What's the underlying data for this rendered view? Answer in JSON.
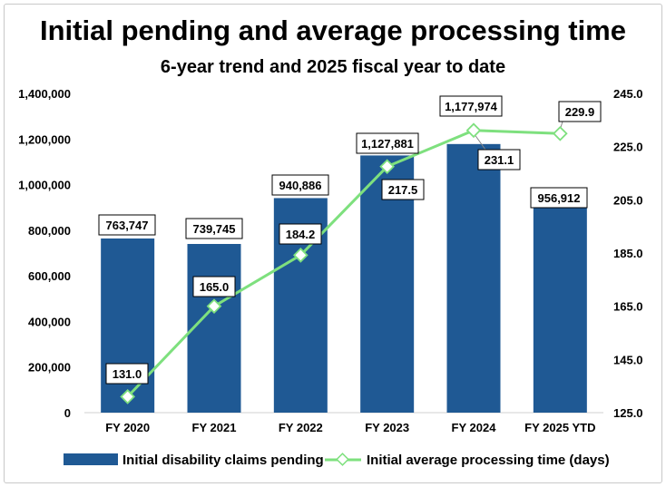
{
  "chart_data": {
    "type": "bar+line",
    "title": "Initial pending and average processing time",
    "subtitle": "6-year trend and 2025 fiscal year to date",
    "categories": [
      "FY 2020",
      "FY 2021",
      "FY 2022",
      "FY 2023",
      "FY 2024",
      "FY 2025 YTD"
    ],
    "series": [
      {
        "name": "Initial disability claims pending",
        "type": "bar",
        "axis": "left",
        "color": "#1f5994",
        "values": [
          763747,
          739745,
          940886,
          1127881,
          1177974,
          956912
        ],
        "labels": [
          "763,747",
          "739,745",
          "940,886",
          "1,127,881",
          "1,177,974",
          "956,912"
        ]
      },
      {
        "name": "Initial average processing time (days)",
        "type": "line",
        "axis": "right",
        "color": "#7ee07e",
        "values": [
          131.0,
          165.0,
          184.2,
          217.5,
          231.1,
          229.9
        ],
        "labels": [
          "131.0",
          "165.0",
          "184.2",
          "217.5",
          "231.1",
          "229.9"
        ]
      }
    ],
    "y_left": {
      "min": 0,
      "max": 1400000,
      "ticks": [
        "0",
        "200,000",
        "400,000",
        "600,000",
        "800,000",
        "1,000,000",
        "1,200,000",
        "1,400,000"
      ]
    },
    "y_right": {
      "min": 125.0,
      "max": 245.0,
      "ticks": [
        "125.0",
        "145.0",
        "165.0",
        "185.0",
        "205.0",
        "225.0",
        "245.0"
      ]
    },
    "legend_position": "bottom",
    "grid": false
  }
}
